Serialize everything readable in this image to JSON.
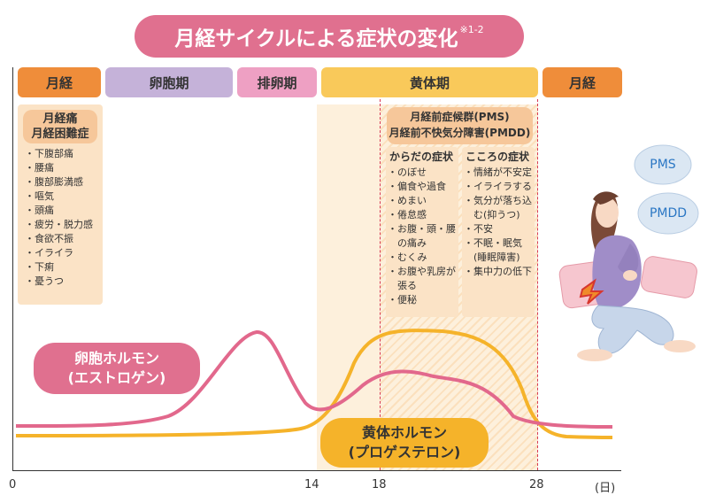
{
  "title": {
    "text": "月経サイクルによる症状の変化",
    "note": "※1-2"
  },
  "phases": {
    "menses1": "月経",
    "follicular": "卵胞期",
    "ovulation": "排卵期",
    "luteal": "黄体期",
    "menses2": "月経"
  },
  "menstrual_box": {
    "title_1": "月経痛",
    "title_2": "月経困難症",
    "items": [
      "下腹部痛",
      "腰痛",
      "腹部膨満感",
      "嘔気",
      "頭痛",
      "疲労・脱力感",
      "食欲不振",
      "イライラ",
      "下痢",
      "憂うつ"
    ]
  },
  "pms_box": {
    "title_1": "月経前症候群(PMS)",
    "title_2": "月経前不快気分障害(PMDD)",
    "body": {
      "title": "からだの症状",
      "items": [
        "のぼせ",
        "偏食や過食",
        "めまい",
        "倦怠感",
        "お腹・頭・腰の痛み",
        "むくみ",
        "お腹や乳房が張る",
        "便秘"
      ]
    },
    "mind": {
      "title": "こころの症状",
      "items": [
        "情緒が不安定",
        "イライラする",
        "気分が落ち込む(抑うつ)",
        "不安",
        "不眠・眠気(睡眠障害)",
        "集中力の低下"
      ]
    }
  },
  "hormones": {
    "estrogen_1": "卵胞ホルモン",
    "estrogen_2": "(エストロゲン)",
    "progesterone_1": "黄体ホルモン",
    "progesterone_2": "(プロゲステロン)"
  },
  "clouds": {
    "pms": "PMS",
    "pmdd": "PMDD"
  },
  "axis": {
    "t0": "0",
    "t14": "14",
    "t18": "18",
    "t28": "28",
    "unit": "(日)"
  },
  "colors": {
    "estrogen": "#e2688c",
    "progesterone": "#f5b32a",
    "menses": "#ef8d3a",
    "dashed": "#d83a55"
  }
}
